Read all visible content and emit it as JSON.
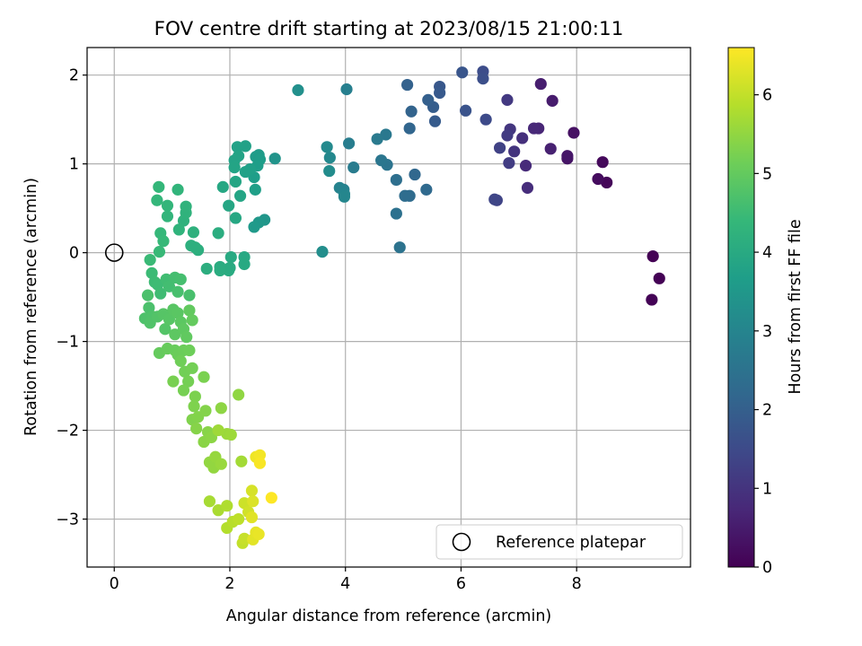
{
  "chart_data": {
    "type": "scatter",
    "title": "FOV centre drift starting at 2023/08/15 21:00:11",
    "xlabel": "Angular distance from reference (arcmin)",
    "ylabel": "Rotation from reference (arcmin)",
    "xlim": [
      -0.47,
      9.97
    ],
    "ylim": [
      -3.54,
      2.31
    ],
    "xticks": [
      0,
      2,
      4,
      6,
      8
    ],
    "yticks": [
      -3,
      -2,
      -1,
      0,
      1,
      2
    ],
    "xtick_labels": [
      "0",
      "2",
      "4",
      "6",
      "8"
    ],
    "ytick_labels": [
      "−3",
      "−2",
      "−1",
      "0",
      "1",
      "2"
    ],
    "grid": true,
    "legend": {
      "placement": "lower-right",
      "entries": [
        "Reference platepar"
      ]
    },
    "colorbar": {
      "label": "Hours from first FF file",
      "range": [
        0,
        6.6
      ],
      "ticks": [
        0,
        1,
        2,
        3,
        4,
        5,
        6
      ],
      "tick_labels": [
        "0",
        "1",
        "2",
        "3",
        "4",
        "5",
        "6"
      ],
      "colormap": "viridis"
    },
    "reference_point": {
      "x": 0,
      "y": 0
    },
    "series": [
      {
        "points": [
          {
            "x": 9.32,
            "y": -0.04,
            "c": 0.0
          },
          {
            "x": 9.43,
            "y": -0.29,
            "c": 0.02
          },
          {
            "x": 9.3,
            "y": -0.53,
            "c": 0.04
          },
          {
            "x": 8.52,
            "y": 0.79,
            "c": 0.1
          },
          {
            "x": 8.45,
            "y": 1.02,
            "c": 0.15
          },
          {
            "x": 8.37,
            "y": 0.83,
            "c": 0.2
          },
          {
            "x": 7.95,
            "y": 1.35,
            "c": 0.3
          },
          {
            "x": 7.84,
            "y": 1.06,
            "c": 0.35
          },
          {
            "x": 7.84,
            "y": 1.09,
            "c": 0.4
          },
          {
            "x": 7.58,
            "y": 1.71,
            "c": 0.5
          },
          {
            "x": 7.38,
            "y": 1.9,
            "c": 0.55
          },
          {
            "x": 7.55,
            "y": 1.17,
            "c": 0.6
          },
          {
            "x": 7.34,
            "y": 1.4,
            "c": 0.7
          },
          {
            "x": 7.26,
            "y": 1.4,
            "c": 0.75
          },
          {
            "x": 7.12,
            "y": 0.98,
            "c": 0.8
          },
          {
            "x": 7.15,
            "y": 0.73,
            "c": 0.85
          },
          {
            "x": 7.06,
            "y": 1.29,
            "c": 0.9
          },
          {
            "x": 6.92,
            "y": 1.14,
            "c": 1.0
          },
          {
            "x": 6.85,
            "y": 1.39,
            "c": 1.05
          },
          {
            "x": 6.8,
            "y": 1.72,
            "c": 1.1
          },
          {
            "x": 6.8,
            "y": 1.32,
            "c": 1.15
          },
          {
            "x": 6.83,
            "y": 1.01,
            "c": 1.2
          },
          {
            "x": 6.67,
            "y": 1.18,
            "c": 1.3
          },
          {
            "x": 6.62,
            "y": 0.59,
            "c": 1.35
          },
          {
            "x": 6.58,
            "y": 0.6,
            "c": 1.4
          },
          {
            "x": 6.43,
            "y": 1.5,
            "c": 1.5
          },
          {
            "x": 6.38,
            "y": 2.04,
            "c": 1.55
          },
          {
            "x": 6.38,
            "y": 1.96,
            "c": 1.6
          },
          {
            "x": 6.08,
            "y": 1.6,
            "c": 1.7
          },
          {
            "x": 6.02,
            "y": 2.03,
            "c": 1.75
          },
          {
            "x": 5.63,
            "y": 1.87,
            "c": 1.8
          },
          {
            "x": 5.63,
            "y": 1.8,
            "c": 1.85
          },
          {
            "x": 5.55,
            "y": 1.48,
            "c": 1.9
          },
          {
            "x": 5.52,
            "y": 1.64,
            "c": 1.95
          },
          {
            "x": 5.43,
            "y": 1.72,
            "c": 2.0
          },
          {
            "x": 5.07,
            "y": 1.89,
            "c": 2.05
          },
          {
            "x": 5.14,
            "y": 1.59,
            "c": 2.1
          },
          {
            "x": 5.11,
            "y": 1.4,
            "c": 2.15
          },
          {
            "x": 5.2,
            "y": 0.88,
            "c": 2.2
          },
          {
            "x": 5.4,
            "y": 0.71,
            "c": 2.25
          },
          {
            "x": 5.11,
            "y": 0.64,
            "c": 2.3
          },
          {
            "x": 5.03,
            "y": 0.64,
            "c": 2.35
          },
          {
            "x": 4.88,
            "y": 0.82,
            "c": 2.4
          },
          {
            "x": 4.88,
            "y": 0.44,
            "c": 2.45
          },
          {
            "x": 4.94,
            "y": 0.06,
            "c": 2.5
          },
          {
            "x": 4.72,
            "y": 0.99,
            "c": 2.55
          },
          {
            "x": 4.62,
            "y": 1.04,
            "c": 2.6
          },
          {
            "x": 4.7,
            "y": 1.33,
            "c": 2.65
          },
          {
            "x": 4.55,
            "y": 1.28,
            "c": 2.7
          },
          {
            "x": 4.14,
            "y": 0.96,
            "c": 2.75
          },
          {
            "x": 4.06,
            "y": 1.23,
            "c": 2.8
          },
          {
            "x": 4.02,
            "y": 1.84,
            "c": 2.85
          },
          {
            "x": 3.97,
            "y": 0.71,
            "c": 2.9
          },
          {
            "x": 3.9,
            "y": 0.73,
            "c": 2.95
          },
          {
            "x": 3.98,
            "y": 0.66,
            "c": 3.0
          },
          {
            "x": 3.98,
            "y": 0.63,
            "c": 3.05
          },
          {
            "x": 3.73,
            "y": 1.07,
            "c": 3.1
          },
          {
            "x": 3.68,
            "y": 1.19,
            "c": 3.15
          },
          {
            "x": 3.72,
            "y": 0.92,
            "c": 3.2
          },
          {
            "x": 3.6,
            "y": 0.01,
            "c": 3.25
          },
          {
            "x": 3.18,
            "y": 1.83,
            "c": 3.3
          },
          {
            "x": 2.78,
            "y": 1.06,
            "c": 3.4
          },
          {
            "x": 2.6,
            "y": 0.37,
            "c": 3.45
          },
          {
            "x": 2.5,
            "y": 0.34,
            "c": 3.5
          },
          {
            "x": 2.42,
            "y": 0.29,
            "c": 3.55
          },
          {
            "x": 2.5,
            "y": 1.1,
            "c": 3.6
          },
          {
            "x": 2.45,
            "y": 1.08,
            "c": 3.62
          },
          {
            "x": 2.52,
            "y": 1.05,
            "c": 3.64
          },
          {
            "x": 2.48,
            "y": 0.98,
            "c": 3.66
          },
          {
            "x": 2.42,
            "y": 0.85,
            "c": 3.68
          },
          {
            "x": 2.44,
            "y": 0.71,
            "c": 3.7
          },
          {
            "x": 2.35,
            "y": 0.94,
            "c": 3.72
          },
          {
            "x": 2.27,
            "y": 0.91,
            "c": 3.74
          },
          {
            "x": 2.27,
            "y": 1.2,
            "c": 3.76
          },
          {
            "x": 2.13,
            "y": 1.19,
            "c": 3.78
          },
          {
            "x": 2.15,
            "y": 1.09,
            "c": 3.8
          },
          {
            "x": 2.08,
            "y": 1.04,
            "c": 3.82
          },
          {
            "x": 2.08,
            "y": 0.96,
            "c": 3.84
          },
          {
            "x": 2.18,
            "y": 0.64,
            "c": 3.86
          },
          {
            "x": 2.1,
            "y": 0.8,
            "c": 3.88
          },
          {
            "x": 1.98,
            "y": 0.53,
            "c": 3.9
          },
          {
            "x": 2.1,
            "y": 0.39,
            "c": 3.92
          },
          {
            "x": 1.88,
            "y": 0.74,
            "c": 3.94
          },
          {
            "x": 2.25,
            "y": -0.05,
            "c": 3.96
          },
          {
            "x": 2.25,
            "y": -0.13,
            "c": 3.98
          },
          {
            "x": 2.02,
            "y": -0.05,
            "c": 4.0
          },
          {
            "x": 2.0,
            "y": -0.17,
            "c": 4.02
          },
          {
            "x": 1.98,
            "y": -0.2,
            "c": 4.04
          },
          {
            "x": 1.83,
            "y": -0.16,
            "c": 4.06
          },
          {
            "x": 1.83,
            "y": -0.2,
            "c": 4.08
          },
          {
            "x": 1.8,
            "y": 0.22,
            "c": 4.1
          },
          {
            "x": 1.6,
            "y": -0.18,
            "c": 4.12
          },
          {
            "x": 1.45,
            "y": 0.03,
            "c": 4.14
          },
          {
            "x": 1.4,
            "y": 0.06,
            "c": 4.16
          },
          {
            "x": 1.33,
            "y": 0.08,
            "c": 4.18
          },
          {
            "x": 1.37,
            "y": 0.23,
            "c": 4.2
          },
          {
            "x": 1.2,
            "y": 0.36,
            "c": 4.22
          },
          {
            "x": 1.24,
            "y": 0.45,
            "c": 4.24
          },
          {
            "x": 1.24,
            "y": 0.52,
            "c": 4.26
          },
          {
            "x": 1.12,
            "y": 0.26,
            "c": 4.28
          },
          {
            "x": 1.1,
            "y": 0.71,
            "c": 4.3
          },
          {
            "x": 0.92,
            "y": 0.41,
            "c": 4.32
          },
          {
            "x": 0.92,
            "y": 0.53,
            "c": 4.34
          },
          {
            "x": 0.74,
            "y": 0.59,
            "c": 4.36
          },
          {
            "x": 0.77,
            "y": 0.74,
            "c": 4.38
          },
          {
            "x": 0.8,
            "y": 0.22,
            "c": 4.4
          },
          {
            "x": 0.85,
            "y": 0.13,
            "c": 4.42
          },
          {
            "x": 0.78,
            "y": 0.01,
            "c": 4.44
          },
          {
            "x": 0.62,
            "y": -0.08,
            "c": 4.46
          },
          {
            "x": 0.65,
            "y": -0.23,
            "c": 4.48
          },
          {
            "x": 0.7,
            "y": -0.33,
            "c": 4.5
          },
          {
            "x": 0.75,
            "y": -0.36,
            "c": 4.52
          },
          {
            "x": 0.8,
            "y": -0.46,
            "c": 4.54
          },
          {
            "x": 0.9,
            "y": -0.3,
            "c": 4.56
          },
          {
            "x": 0.95,
            "y": -0.38,
            "c": 4.58
          },
          {
            "x": 1.05,
            "y": -0.28,
            "c": 4.6
          },
          {
            "x": 1.15,
            "y": -0.3,
            "c": 4.62
          },
          {
            "x": 1.1,
            "y": -0.44,
            "c": 4.64
          },
          {
            "x": 1.3,
            "y": -0.48,
            "c": 4.66
          },
          {
            "x": 0.58,
            "y": -0.48,
            "c": 4.68
          },
          {
            "x": 0.6,
            "y": -0.62,
            "c": 4.7
          },
          {
            "x": 0.53,
            "y": -0.74,
            "c": 4.72
          },
          {
            "x": 0.66,
            "y": -0.72,
            "c": 4.74
          },
          {
            "x": 0.62,
            "y": -0.79,
            "c": 4.76
          },
          {
            "x": 0.75,
            "y": -0.72,
            "c": 4.78
          },
          {
            "x": 0.88,
            "y": -0.86,
            "c": 4.8
          },
          {
            "x": 0.85,
            "y": -0.69,
            "c": 4.82
          },
          {
            "x": 0.95,
            "y": -0.75,
            "c": 4.84
          },
          {
            "x": 1.02,
            "y": -0.64,
            "c": 4.86
          },
          {
            "x": 1.1,
            "y": -0.68,
            "c": 4.88
          },
          {
            "x": 1.15,
            "y": -0.78,
            "c": 4.9
          },
          {
            "x": 1.05,
            "y": -0.92,
            "c": 4.92
          },
          {
            "x": 1.2,
            "y": -0.86,
            "c": 4.94
          },
          {
            "x": 1.25,
            "y": -0.95,
            "c": 4.96
          },
          {
            "x": 1.3,
            "y": -0.65,
            "c": 4.98
          },
          {
            "x": 1.35,
            "y": -0.76,
            "c": 5.0
          },
          {
            "x": 0.78,
            "y": -1.13,
            "c": 5.02
          },
          {
            "x": 0.92,
            "y": -1.08,
            "c": 5.04
          },
          {
            "x": 1.05,
            "y": -1.1,
            "c": 5.06
          },
          {
            "x": 1.1,
            "y": -1.15,
            "c": 5.08
          },
          {
            "x": 1.2,
            "y": -1.1,
            "c": 5.1
          },
          {
            "x": 1.3,
            "y": -1.1,
            "c": 5.12
          },
          {
            "x": 1.15,
            "y": -1.22,
            "c": 5.14
          },
          {
            "x": 1.22,
            "y": -1.34,
            "c": 5.16
          },
          {
            "x": 1.35,
            "y": -1.3,
            "c": 5.18
          },
          {
            "x": 1.28,
            "y": -1.45,
            "c": 5.2
          },
          {
            "x": 1.2,
            "y": -1.55,
            "c": 5.22
          },
          {
            "x": 1.02,
            "y": -1.45,
            "c": 5.24
          },
          {
            "x": 1.55,
            "y": -1.4,
            "c": 5.26
          },
          {
            "x": 1.4,
            "y": -1.62,
            "c": 5.28
          },
          {
            "x": 1.38,
            "y": -1.73,
            "c": 5.3
          },
          {
            "x": 1.35,
            "y": -1.88,
            "c": 5.32
          },
          {
            "x": 1.45,
            "y": -1.85,
            "c": 5.34
          },
          {
            "x": 1.58,
            "y": -1.78,
            "c": 5.36
          },
          {
            "x": 1.42,
            "y": -1.98,
            "c": 5.38
          },
          {
            "x": 1.62,
            "y": -2.02,
            "c": 5.4
          },
          {
            "x": 1.55,
            "y": -2.13,
            "c": 5.42
          },
          {
            "x": 1.68,
            "y": -2.08,
            "c": 5.44
          },
          {
            "x": 1.85,
            "y": -1.75,
            "c": 5.46
          },
          {
            "x": 2.15,
            "y": -1.6,
            "c": 5.48
          },
          {
            "x": 1.65,
            "y": -2.36,
            "c": 5.5
          },
          {
            "x": 1.72,
            "y": -2.42,
            "c": 5.52
          },
          {
            "x": 1.75,
            "y": -2.3,
            "c": 5.55
          },
          {
            "x": 1.85,
            "y": -2.38,
            "c": 5.58
          },
          {
            "x": 1.95,
            "y": -2.04,
            "c": 5.6
          },
          {
            "x": 2.02,
            "y": -2.05,
            "c": 5.62
          },
          {
            "x": 1.8,
            "y": -2.0,
            "c": 5.64
          },
          {
            "x": 2.2,
            "y": -2.35,
            "c": 5.68
          },
          {
            "x": 1.65,
            "y": -2.8,
            "c": 5.72
          },
          {
            "x": 1.8,
            "y": -2.9,
            "c": 5.75
          },
          {
            "x": 1.95,
            "y": -2.85,
            "c": 5.8
          },
          {
            "x": 1.95,
            "y": -3.1,
            "c": 5.85
          },
          {
            "x": 2.05,
            "y": -3.03,
            "c": 5.9
          },
          {
            "x": 2.15,
            "y": -3.0,
            "c": 5.95
          },
          {
            "x": 2.22,
            "y": -3.27,
            "c": 6.0
          },
          {
            "x": 2.25,
            "y": -3.22,
            "c": 6.05
          },
          {
            "x": 2.25,
            "y": -2.82,
            "c": 6.1
          },
          {
            "x": 2.32,
            "y": -2.92,
            "c": 6.15
          },
          {
            "x": 2.38,
            "y": -2.68,
            "c": 6.2
          },
          {
            "x": 2.4,
            "y": -2.8,
            "c": 6.25
          },
          {
            "x": 2.38,
            "y": -2.98,
            "c": 6.3
          },
          {
            "x": 2.4,
            "y": -3.23,
            "c": 6.33
          },
          {
            "x": 2.45,
            "y": -3.15,
            "c": 6.36
          },
          {
            "x": 2.5,
            "y": -3.17,
            "c": 6.4
          },
          {
            "x": 2.45,
            "y": -2.3,
            "c": 6.45
          },
          {
            "x": 2.52,
            "y": -2.28,
            "c": 6.5
          },
          {
            "x": 2.52,
            "y": -2.37,
            "c": 6.55
          },
          {
            "x": 2.72,
            "y": -2.76,
            "c": 6.6
          }
        ]
      }
    ]
  }
}
